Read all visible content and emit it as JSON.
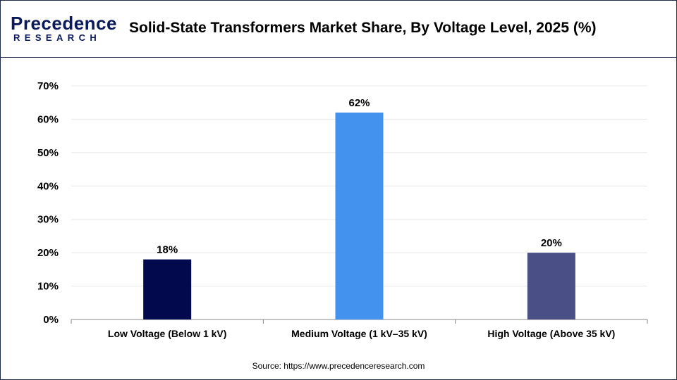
{
  "header": {
    "logo_main": "Precedence",
    "logo_sub": "RESEARCH",
    "title": "Solid-State Transformers Market Share, By Voltage Level, 2025 (%)"
  },
  "source": "Source: https://www.precedenceresearch.com",
  "colors": {
    "bar_low": "#020a4d",
    "bar_medium": "#4393ee",
    "bar_high": "#4a4f86",
    "grid": "#e8e8e8",
    "axis": "#888888",
    "brand": "#0b1a5a"
  },
  "chart_data": {
    "type": "bar",
    "title": "Solid-State Transformers Market Share, By Voltage Level, 2025 (%)",
    "xlabel": "",
    "ylabel": "",
    "categories": [
      "Low Voltage (Below 1 kV)",
      "Medium Voltage (1 kV–35 kV)",
      "High Voltage (Above 35 kV)"
    ],
    "values": [
      18,
      62,
      20
    ],
    "data_labels": [
      "18%",
      "62%",
      "20%"
    ],
    "ylim": [
      0,
      70
    ],
    "yticks": [
      0,
      10,
      20,
      30,
      40,
      50,
      60,
      70
    ],
    "ytick_labels": [
      "0%",
      "10%",
      "20%",
      "30%",
      "40%",
      "50%",
      "60%",
      "70%"
    ],
    "grid": true,
    "legend": "none"
  }
}
